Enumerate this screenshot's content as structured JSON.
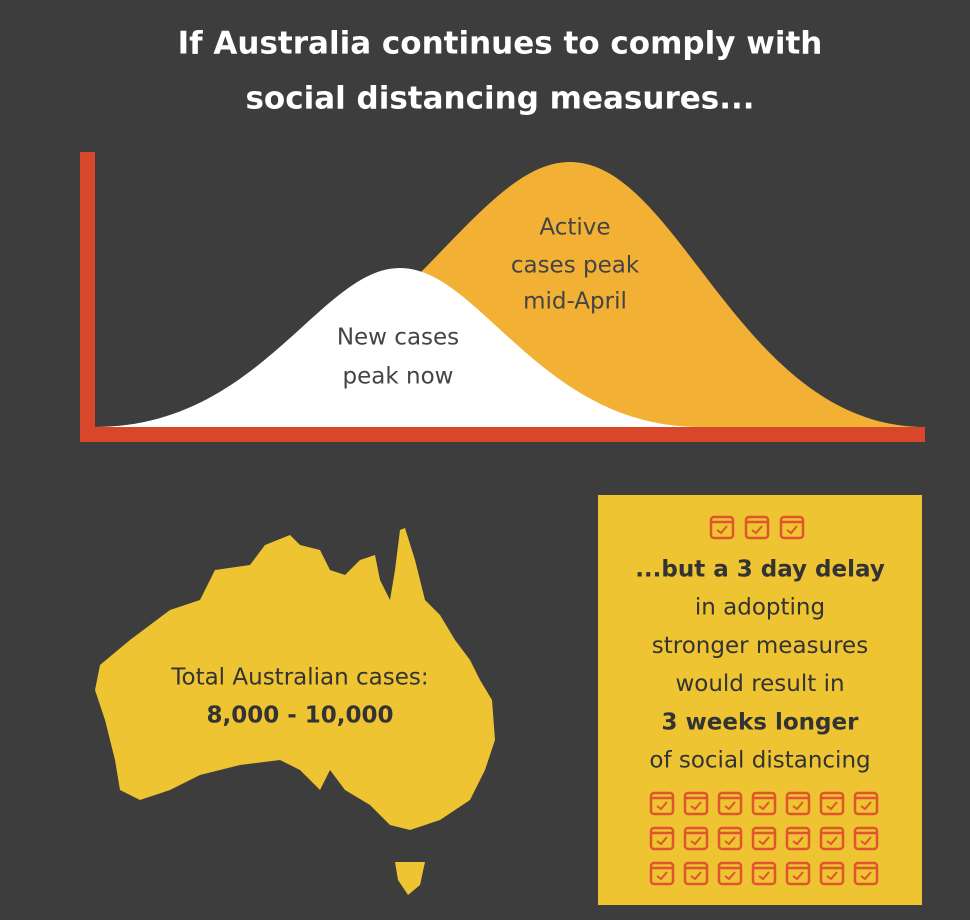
{
  "header": {
    "title": [
      "If Australia continues to comply with",
      "social distancing measures..."
    ]
  },
  "curves": {
    "new_cases": [
      "New cases",
      "peak now"
    ],
    "active_cases": [
      "Active",
      "cases peak",
      "mid-April"
    ]
  },
  "map": {
    "label": "Total Australian cases:",
    "value": "8,000 - 10,000"
  },
  "delay_box": {
    "lines": [
      {
        "text": "...but a 3 day delay",
        "bold": true
      },
      {
        "text": "in adopting",
        "bold": false
      },
      {
        "text": "stronger measures",
        "bold": false
      },
      {
        "text": "would result in",
        "bold": false
      },
      {
        "text": "3 weeks longer",
        "bold": true
      },
      {
        "text": "of social distancing",
        "bold": false
      }
    ]
  }
}
